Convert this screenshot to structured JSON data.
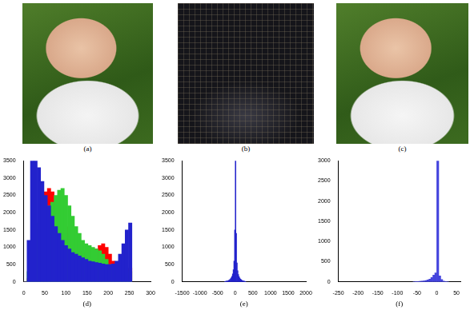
{
  "images": [
    {
      "label": "(a)"
    },
    {
      "label": "(b)"
    },
    {
      "label": "(c)"
    }
  ],
  "chart_data": [
    {
      "type": "histogram",
      "x_label": "(d)",
      "grid": false,
      "xlim": [
        0,
        300
      ],
      "xticks": [
        0,
        50,
        100,
        150,
        200,
        250,
        300
      ],
      "ylim": [
        0,
        3500
      ],
      "yticks": [
        0,
        500,
        1000,
        1500,
        2000,
        2500,
        3000,
        3500
      ],
      "bins": [
        0,
        8,
        16,
        24,
        32,
        40,
        48,
        56,
        64,
        72,
        80,
        88,
        96,
        104,
        112,
        120,
        128,
        136,
        144,
        152,
        160,
        168,
        176,
        184,
        192,
        200,
        208,
        216,
        224,
        232,
        240,
        248,
        256
      ],
      "series": [
        {
          "color": "#ff0000",
          "values": [
            0,
            100,
            400,
            900,
            1500,
            2100,
            2600,
            2700,
            2600,
            2300,
            2000,
            1800,
            1600,
            1400,
            1200,
            1000,
            900,
            850,
            800,
            800,
            850,
            950,
            1050,
            1100,
            1000,
            800,
            600,
            450,
            350,
            300,
            250,
            400
          ]
        },
        {
          "color": "#33cc33",
          "values": [
            0,
            300,
            800,
            1300,
            1700,
            2000,
            2100,
            2200,
            2300,
            2500,
            2650,
            2700,
            2500,
            2200,
            1900,
            1600,
            1400,
            1200,
            1100,
            1050,
            1000,
            950,
            900,
            800,
            650,
            500,
            400,
            350,
            300,
            250,
            200,
            300
          ]
        },
        {
          "color": "#2222cc",
          "values": [
            0,
            1200,
            3500,
            3500,
            3300,
            2900,
            2500,
            2200,
            1900,
            1600,
            1400,
            1200,
            1050,
            950,
            850,
            800,
            750,
            700,
            650,
            600,
            580,
            560,
            540,
            520,
            500,
            500,
            520,
            600,
            800,
            1100,
            1500,
            1700
          ]
        }
      ]
    },
    {
      "type": "histogram",
      "x_label": "(e)",
      "grid": false,
      "xlim": [
        -1500,
        2000
      ],
      "xticks": [
        -1500,
        -1000,
        -500,
        0,
        500,
        1000,
        1500,
        2000
      ],
      "ylim": [
        0,
        3500
      ],
      "yticks": [
        0,
        500,
        1000,
        1500,
        2000,
        2500,
        3000,
        3500
      ],
      "bins": [
        -300,
        -280,
        -260,
        -240,
        -220,
        -200,
        -180,
        -160,
        -140,
        -120,
        -100,
        -80,
        -60,
        -40,
        -20,
        0,
        20,
        40,
        60,
        80,
        100,
        120,
        140,
        160,
        180,
        200,
        220,
        240,
        260,
        280,
        300
      ],
      "series": [
        {
          "color": "#2222cc",
          "values": [
            10,
            15,
            20,
            25,
            30,
            40,
            50,
            70,
            90,
            120,
            160,
            230,
            350,
            600,
            1500,
            3500,
            1400,
            550,
            320,
            210,
            150,
            110,
            80,
            60,
            45,
            35,
            28,
            22,
            16,
            12
          ]
        }
      ]
    },
    {
      "type": "histogram",
      "x_label": "(f)",
      "grid": false,
      "xlim": [
        -250,
        60
      ],
      "xticks": [
        -250,
        -200,
        -150,
        -100,
        -50,
        0,
        50
      ],
      "ylim": [
        0,
        3000
      ],
      "yticks": [
        0,
        500,
        1000,
        1500,
        2000,
        2500,
        3000
      ],
      "bins": [
        -60,
        -55,
        -50,
        -45,
        -40,
        -35,
        -30,
        -25,
        -20,
        -15,
        -10,
        -5,
        0,
        5,
        10,
        15,
        20,
        25,
        30
      ],
      "series": [
        {
          "color": "#4444dd",
          "values": [
            5,
            8,
            10,
            15,
            20,
            25,
            35,
            50,
            70,
            110,
            170,
            220,
            3000,
            150,
            60,
            20,
            8,
            4
          ]
        }
      ]
    }
  ]
}
